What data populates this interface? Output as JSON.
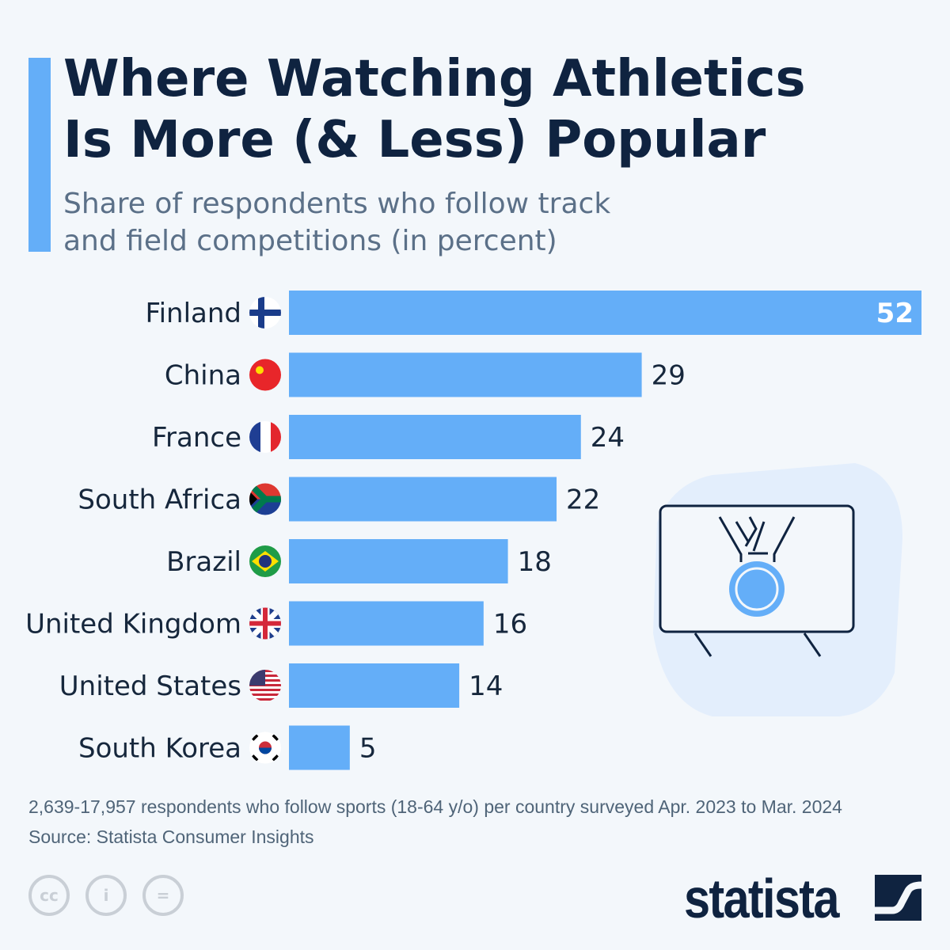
{
  "title": [
    "Where Watching Athletics",
    "Is More (& Less) Popular"
  ],
  "subtitle": [
    "Share of respondents who follow track",
    "and field competitions (in percent)"
  ],
  "chart_data": {
    "type": "bar",
    "orientation": "horizontal",
    "categories": [
      "Finland",
      "China",
      "France",
      "South Africa",
      "Brazil",
      "United Kingdom",
      "United States",
      "South Korea"
    ],
    "values": [
      52,
      29,
      24,
      22,
      18,
      16,
      14,
      5
    ],
    "title": "Where Watching Athletics Is More (& Less) Popular",
    "subtitle": "Share of respondents who follow track and field competitions (in percent)",
    "xlim": [
      0,
      52
    ],
    "grid": false,
    "bar_color": "#64aef8"
  },
  "flags": [
    "finland-flag-icon",
    "china-flag-icon",
    "france-flag-icon",
    "south-africa-flag-icon",
    "brazil-flag-icon",
    "uk-flag-icon",
    "usa-flag-icon",
    "south-korea-flag-icon"
  ],
  "footer": {
    "note": "2,639-17,957 respondents who follow sports (18-64 y/o) per country surveyed Apr. 2023 to Mar. 2024",
    "source": "Source: Statista Consumer Insights",
    "cc_label": "cc",
    "eq_label": "=",
    "logo": "statista"
  },
  "colors": {
    "background": "#f3f7fb",
    "accent": "#64aef8",
    "text": "#0f2340"
  }
}
